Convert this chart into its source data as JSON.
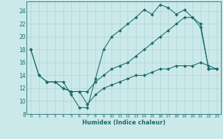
{
  "xlabel": "Humidex (Indice chaleur)",
  "bg_color": "#cce9e9",
  "line_color": "#1a6b6b",
  "grid_color": "#aad4d4",
  "xlim": [
    -0.5,
    23.5
  ],
  "ylim": [
    8,
    25.5
  ],
  "xticks": [
    0,
    1,
    2,
    3,
    4,
    5,
    6,
    7,
    8,
    9,
    10,
    11,
    12,
    13,
    14,
    15,
    16,
    17,
    18,
    19,
    20,
    21,
    22,
    23
  ],
  "yticks": [
    8,
    10,
    12,
    14,
    16,
    18,
    20,
    22,
    24
  ],
  "line1_x": [
    0,
    1,
    2,
    3,
    4,
    5,
    6,
    7,
    8,
    9,
    10,
    11,
    12,
    13,
    14,
    15,
    16,
    17,
    18,
    19,
    20,
    21,
    22,
    23
  ],
  "line1_y": [
    18,
    14,
    13,
    13,
    13,
    11,
    9,
    9,
    13.5,
    18,
    20,
    21,
    22,
    23,
    24.2,
    23.5,
    25,
    24.5,
    23.5,
    24.2,
    23,
    21.5,
    15,
    15
  ],
  "line2_x": [
    0,
    1,
    2,
    3,
    4,
    5,
    6,
    7,
    8,
    9,
    10,
    11,
    12,
    13,
    14,
    15,
    16,
    17,
    18,
    19,
    20,
    21,
    22,
    23
  ],
  "line2_y": [
    18,
    14,
    13,
    13,
    12,
    11.5,
    11.5,
    11.5,
    13,
    14,
    15,
    15.5,
    16,
    17,
    18,
    19,
    20,
    21,
    22,
    23,
    23,
    22,
    15,
    15
  ],
  "line3_x": [
    2,
    3,
    4,
    5,
    6,
    7,
    8,
    9,
    10,
    11,
    12,
    13,
    14,
    15,
    16,
    17,
    18,
    19,
    20,
    21,
    22,
    23
  ],
  "line3_y": [
    13,
    13,
    12,
    11.5,
    11.5,
    9.5,
    11,
    12,
    12.5,
    13,
    13.5,
    14,
    14,
    14.5,
    15,
    15,
    15.5,
    15.5,
    15.5,
    16,
    15.5,
    15
  ]
}
